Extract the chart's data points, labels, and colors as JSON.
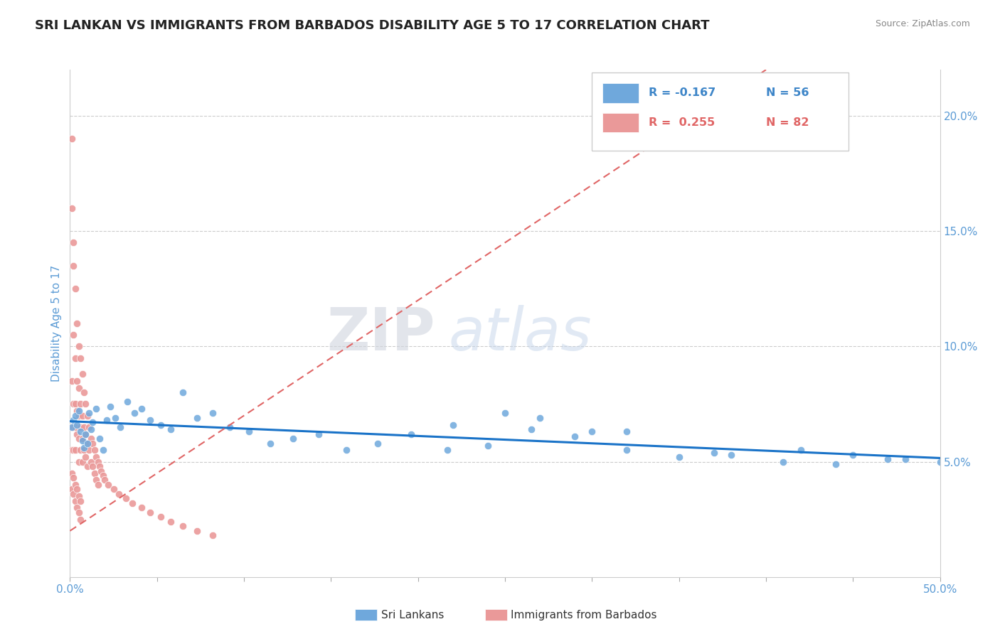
{
  "title": "SRI LANKAN VS IMMIGRANTS FROM BARBADOS DISABILITY AGE 5 TO 17 CORRELATION CHART",
  "source": "Source: ZipAtlas.com",
  "ylabel": "Disability Age 5 to 17",
  "xlim": [
    0,
    0.5
  ],
  "ylim": [
    0,
    0.22
  ],
  "color_blue": "#6fa8dc",
  "color_pink": "#ea9999",
  "color_trendline_blue": "#1a73c8",
  "color_trendline_pink": "#e06666",
  "color_blue_text": "#3d85c8",
  "color_pink_text": "#e06666",
  "watermark_zip": "ZIP",
  "watermark_atlas": "atlas",
  "title_fontsize": 13,
  "axis_label_color": "#5b9bd5",
  "background_color": "#ffffff",
  "blue_scatter_x": [
    0.001,
    0.002,
    0.003,
    0.004,
    0.005,
    0.006,
    0.007,
    0.008,
    0.009,
    0.01,
    0.011,
    0.012,
    0.013,
    0.015,
    0.017,
    0.019,
    0.021,
    0.023,
    0.026,
    0.029,
    0.033,
    0.037,
    0.041,
    0.046,
    0.052,
    0.058,
    0.065,
    0.073,
    0.082,
    0.092,
    0.103,
    0.115,
    0.128,
    0.143,
    0.159,
    0.177,
    0.196,
    0.217,
    0.24,
    0.265,
    0.29,
    0.32,
    0.35,
    0.38,
    0.41,
    0.44,
    0.47,
    0.25,
    0.3,
    0.22,
    0.27,
    0.32,
    0.37,
    0.42,
    0.45,
    0.48,
    0.5
  ],
  "blue_scatter_y": [
    0.065,
    0.068,
    0.07,
    0.066,
    0.072,
    0.063,
    0.059,
    0.056,
    0.062,
    0.058,
    0.071,
    0.064,
    0.067,
    0.073,
    0.06,
    0.055,
    0.068,
    0.074,
    0.069,
    0.065,
    0.076,
    0.071,
    0.073,
    0.068,
    0.066,
    0.064,
    0.08,
    0.069,
    0.071,
    0.065,
    0.063,
    0.058,
    0.06,
    0.062,
    0.055,
    0.058,
    0.062,
    0.055,
    0.057,
    0.064,
    0.061,
    0.055,
    0.052,
    0.053,
    0.05,
    0.049,
    0.051,
    0.071,
    0.063,
    0.066,
    0.069,
    0.063,
    0.054,
    0.055,
    0.053,
    0.051,
    0.05
  ],
  "pink_scatter_x": [
    0.001,
    0.001,
    0.001,
    0.001,
    0.001,
    0.002,
    0.002,
    0.002,
    0.002,
    0.002,
    0.002,
    0.003,
    0.003,
    0.003,
    0.003,
    0.003,
    0.004,
    0.004,
    0.004,
    0.004,
    0.005,
    0.005,
    0.005,
    0.005,
    0.005,
    0.006,
    0.006,
    0.006,
    0.006,
    0.007,
    0.007,
    0.007,
    0.007,
    0.008,
    0.008,
    0.008,
    0.009,
    0.009,
    0.009,
    0.01,
    0.01,
    0.01,
    0.011,
    0.011,
    0.012,
    0.012,
    0.013,
    0.013,
    0.014,
    0.014,
    0.015,
    0.015,
    0.016,
    0.016,
    0.017,
    0.018,
    0.019,
    0.02,
    0.022,
    0.025,
    0.028,
    0.032,
    0.036,
    0.041,
    0.046,
    0.052,
    0.058,
    0.065,
    0.073,
    0.082,
    0.001,
    0.001,
    0.002,
    0.002,
    0.003,
    0.003,
    0.004,
    0.004,
    0.005,
    0.005,
    0.006,
    0.006
  ],
  "pink_scatter_y": [
    0.19,
    0.16,
    0.085,
    0.065,
    0.055,
    0.145,
    0.135,
    0.105,
    0.075,
    0.065,
    0.055,
    0.125,
    0.095,
    0.075,
    0.065,
    0.055,
    0.11,
    0.085,
    0.072,
    0.062,
    0.1,
    0.082,
    0.07,
    0.06,
    0.05,
    0.095,
    0.075,
    0.065,
    0.055,
    0.088,
    0.07,
    0.06,
    0.05,
    0.08,
    0.065,
    0.055,
    0.075,
    0.062,
    0.052,
    0.07,
    0.058,
    0.048,
    0.065,
    0.055,
    0.06,
    0.05,
    0.058,
    0.048,
    0.055,
    0.045,
    0.052,
    0.042,
    0.05,
    0.04,
    0.048,
    0.046,
    0.044,
    0.042,
    0.04,
    0.038,
    0.036,
    0.034,
    0.032,
    0.03,
    0.028,
    0.026,
    0.024,
    0.022,
    0.02,
    0.018,
    0.045,
    0.038,
    0.043,
    0.036,
    0.04,
    0.033,
    0.038,
    0.03,
    0.035,
    0.028,
    0.033,
    0.025
  ],
  "pink_trend_x0": 0.0,
  "pink_trend_x1": 0.4,
  "pink_trend_y0": 0.02,
  "pink_trend_y1": 0.22
}
